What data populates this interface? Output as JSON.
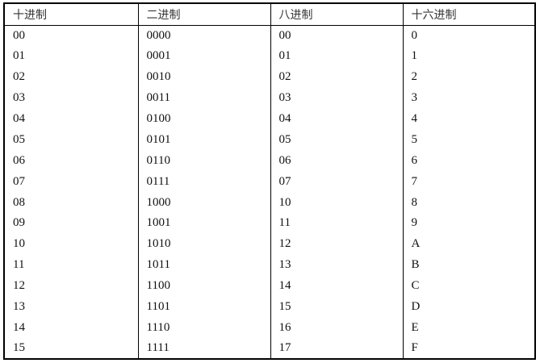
{
  "table": {
    "headers": [
      "十进制",
      "二进制",
      "八进制",
      "十六进制"
    ],
    "rows": [
      [
        "00",
        "0000",
        "00",
        "0"
      ],
      [
        "01",
        "0001",
        "01",
        "1"
      ],
      [
        "02",
        "0010",
        "02",
        "2"
      ],
      [
        "03",
        "0011",
        "03",
        "3"
      ],
      [
        "04",
        "0100",
        "04",
        "4"
      ],
      [
        "05",
        "0101",
        "05",
        "5"
      ],
      [
        "06",
        "0110",
        "06",
        "6"
      ],
      [
        "07",
        "0111",
        "07",
        "7"
      ],
      [
        "08",
        "1000",
        "10",
        "8"
      ],
      [
        "09",
        "1001",
        "11",
        "9"
      ],
      [
        "10",
        "1010",
        "12",
        "A"
      ],
      [
        "11",
        "1011",
        "13",
        "B"
      ],
      [
        "12",
        "1100",
        "14",
        "C"
      ],
      [
        "13",
        "1101",
        "15",
        "D"
      ],
      [
        "14",
        "1110",
        "16",
        "E"
      ],
      [
        "15",
        "1111",
        "17",
        "F"
      ]
    ]
  }
}
